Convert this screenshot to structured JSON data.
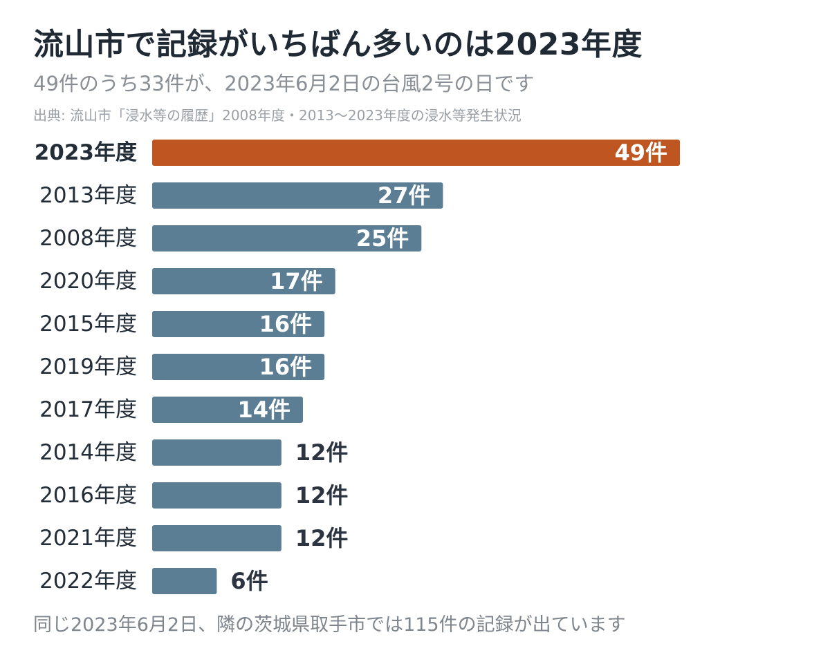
{
  "header": {
    "title": "流山市で記録がいちばん多いのは2023年度",
    "subtitle": "49件のうち33件が、2023年6月2日の台風2号の日です",
    "source": "出典: 流山市「浸水等の履歴」2008年度・2013〜2023年度の浸水等発生状況"
  },
  "footer": {
    "note": "同じ2023年6月2日、隣の茨城県取手市では115件の記録が出ています"
  },
  "colors": {
    "highlight": "#bf5521",
    "bar": "#5b7e95",
    "label_inside": "#ffffff",
    "label_outside": "#2b3440"
  },
  "chart_data": {
    "type": "bar",
    "orientation": "horizontal",
    "value_suffix": "件",
    "categories": [
      "2023年度",
      "2013年度",
      "2008年度",
      "2020年度",
      "2015年度",
      "2019年度",
      "2017年度",
      "2014年度",
      "2016年度",
      "2021年度",
      "2022年度"
    ],
    "values": [
      49,
      27,
      25,
      17,
      16,
      16,
      14,
      12,
      12,
      12,
      6
    ],
    "value_labels": [
      "49件",
      "27件",
      "25件",
      "17件",
      "16件",
      "16件",
      "14件",
      "12件",
      "12件",
      "12件",
      "6件"
    ],
    "highlight_category": "2023年度",
    "xlim": [
      0,
      49
    ],
    "grid": false,
    "legend": "none"
  }
}
